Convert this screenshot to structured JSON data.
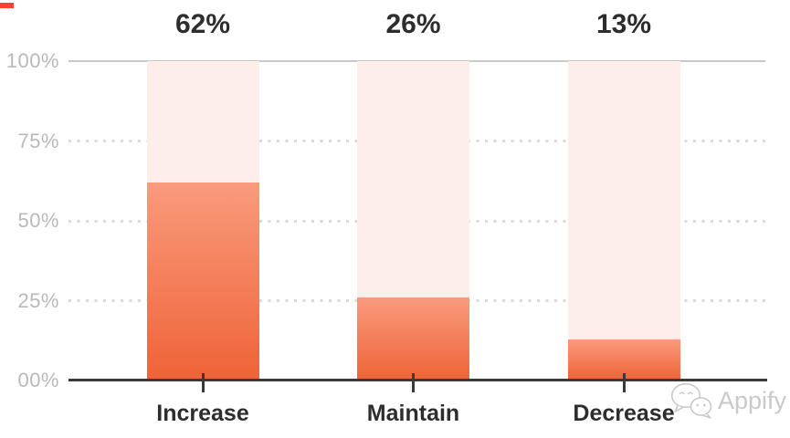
{
  "chart_data": {
    "type": "bar",
    "categories": [
      "Increase",
      "Maintain",
      "Decrease"
    ],
    "values": [
      62,
      26,
      13
    ],
    "value_labels": [
      "62%",
      "26%",
      "13%"
    ],
    "title": "",
    "xlabel": "",
    "ylabel": "",
    "ylim": [
      0,
      100
    ],
    "y_tick_values": [
      100,
      75,
      50,
      25,
      0
    ],
    "y_tick_labels": [
      "100%",
      "75%",
      "50%",
      "25%",
      "00%"
    ],
    "grid": "horizontal; solid line at 100%, dotted lines at 75%, 50%, 25%",
    "legend": "none",
    "bar_style": "each bar has a full-height light track to 100% with an orange gradient fill up to its value"
  },
  "colors": {
    "bar_fill_top": "#f99b7d",
    "bar_fill_bottom": "#ef6337",
    "bar_track": "#fdeee9",
    "axis": "#3a3a3a",
    "grid_solid": "#c9c9c9",
    "grid_dotted": "#d9d9d9",
    "y_tick_label": "#b9b9b9",
    "value_label": "#2d2d2d",
    "category_label": "#2d2d2d",
    "watermark": "#c9c9c9",
    "corner_dash": "#f8432a"
  },
  "watermark": {
    "icon": "wechat-chat-bubbles-icon",
    "label": "Appify"
  }
}
